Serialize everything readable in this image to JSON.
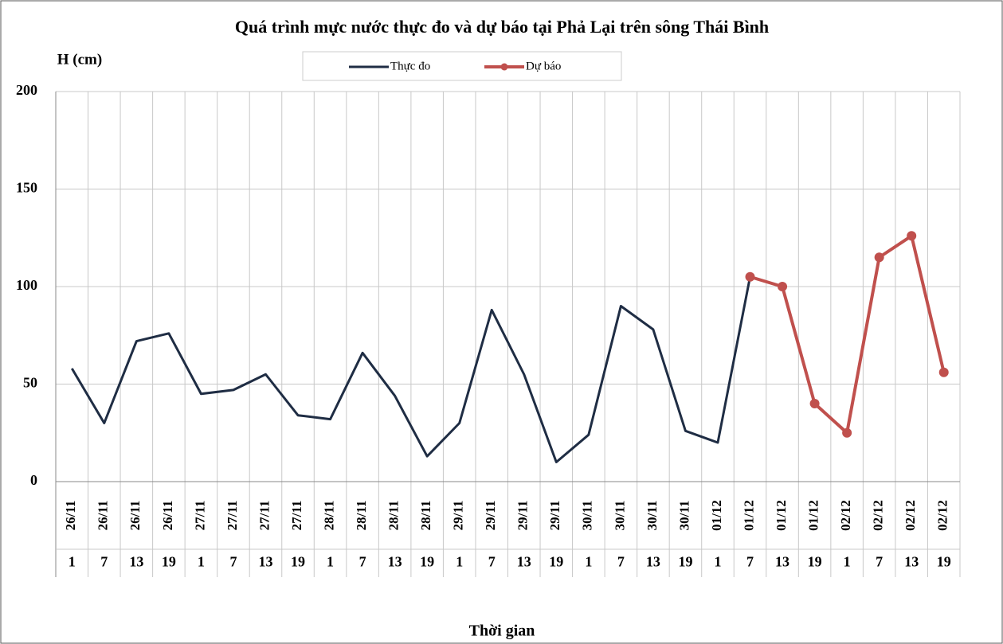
{
  "chart_data": {
    "type": "line",
    "title": "Quá trình  mực nước thực đo và dự báo tại Phả Lại trên sông Thái Bình",
    "y_label": "H (cm)",
    "x_label": "Thời gian",
    "categories": [
      "26/11",
      "26/11",
      "26/11",
      "26/11",
      "27/11",
      "27/11",
      "27/11",
      "27/11",
      "28/11",
      "28/11",
      "28/11",
      "28/11",
      "29/11",
      "29/11",
      "29/11",
      "29/11",
      "30/11",
      "30/11",
      "30/11",
      "30/11",
      "01/12",
      "01/12",
      "01/12",
      "01/12",
      "02/12",
      "02/12",
      "02/12",
      "02/12"
    ],
    "category_hours": [
      1,
      7,
      13,
      19,
      1,
      7,
      13,
      19,
      1,
      7,
      13,
      19,
      1,
      7,
      13,
      19,
      1,
      7,
      13,
      19,
      1,
      7,
      13,
      19,
      1,
      7,
      13,
      19
    ],
    "series": [
      {
        "name": "Thực đo",
        "color": "#1f2d44",
        "markers": false,
        "values": [
          58,
          30,
          72,
          76,
          45,
          47,
          55,
          34,
          32,
          66,
          44,
          13,
          30,
          88,
          55,
          10,
          24,
          90,
          78,
          26,
          20,
          105,
          null,
          null,
          null,
          null,
          null,
          null
        ]
      },
      {
        "name": "Dự báo",
        "color": "#c0504d",
        "markers": true,
        "values": [
          null,
          null,
          null,
          null,
          null,
          null,
          null,
          null,
          null,
          null,
          null,
          null,
          null,
          null,
          null,
          null,
          null,
          null,
          null,
          null,
          null,
          105,
          100,
          40,
          25,
          115,
          126,
          56
        ]
      }
    ],
    "ylim": [
      0,
      200
    ],
    "yticks": [
      0,
      50,
      100,
      150,
      200
    ],
    "grid": true
  }
}
